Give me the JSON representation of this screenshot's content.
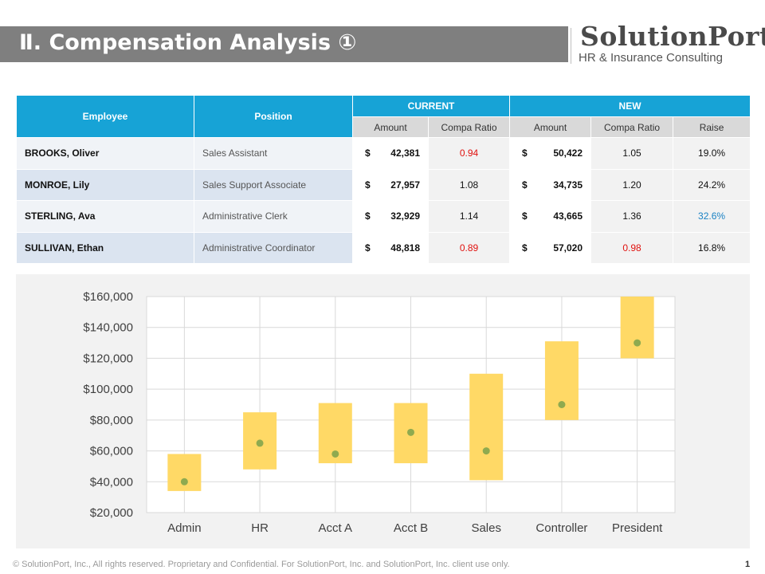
{
  "header": {
    "title": "Ⅱ. Compensation Analysis ①",
    "logo_name": "SolutionPort",
    "logo_sub": "HR & Insurance Consulting"
  },
  "table": {
    "headers": {
      "employee": "Employee",
      "position": "Position",
      "current": "CURRENT",
      "new": "NEW",
      "amount": "Amount",
      "compa_ratio": "Compa Ratio",
      "new_amount": "Amount",
      "new_compa_ratio": "Compa Ratio",
      "raise": "Raise"
    },
    "rows": [
      {
        "employee": "BROOKS, Oliver",
        "position": "Sales Assistant",
        "cur_sign": "$",
        "cur_amount": "42,381",
        "cur_ratio": "0.94",
        "new_sign": "$",
        "new_amount": "50,422",
        "new_ratio": "1.05",
        "raise": "19.0%"
      },
      {
        "employee": "MONROE, Lily",
        "position": "Sales Support Associate",
        "cur_sign": "$",
        "cur_amount": "27,957",
        "cur_ratio": "1.08",
        "new_sign": "$",
        "new_amount": "34,735",
        "new_ratio": "1.20",
        "raise": "24.2%"
      },
      {
        "employee": "STERLING, Ava",
        "position": "Administrative Clerk",
        "cur_sign": "$",
        "cur_amount": "32,929",
        "cur_ratio": "1.14",
        "new_sign": "$",
        "new_amount": "43,665",
        "new_ratio": "1.36",
        "raise": "32.6%"
      },
      {
        "employee": "SULLIVAN, Ethan",
        "position": "Administrative Coordinator",
        "cur_sign": "$",
        "cur_amount": "48,818",
        "cur_ratio": "0.89",
        "new_sign": "$",
        "new_amount": "57,020",
        "new_ratio": "0.98",
        "raise": "16.8%"
      }
    ]
  },
  "colors": {
    "header_blue": "#17a3d6",
    "ratio_low_red": "#e0120f",
    "raise_high_blue": "#1a82c4",
    "range_bar": "#ffd966",
    "midpoint": "#8faa4f"
  },
  "chart_data": {
    "type": "range-bar",
    "title": "",
    "xlabel": "",
    "ylabel": "",
    "categories": [
      "Admin",
      "HR",
      "Acct A",
      "Acct B",
      "Sales",
      "Controller",
      "President"
    ],
    "series": [
      {
        "name": "min",
        "values": [
          34000,
          48000,
          52000,
          52000,
          41000,
          80000,
          120000
        ]
      },
      {
        "name": "max",
        "values": [
          58000,
          85000,
          91000,
          91000,
          110000,
          131000,
          160000
        ]
      },
      {
        "name": "midpoint",
        "values": [
          40000,
          65000,
          58000,
          72000,
          60000,
          90000,
          130000
        ]
      }
    ],
    "ylim": [
      20000,
      160000
    ],
    "yticks": [
      20000,
      40000,
      60000,
      80000,
      100000,
      120000,
      140000,
      160000
    ],
    "ytick_labels": [
      "$20,000",
      "$40,000",
      "$60,000",
      "$80,000",
      "$100,000",
      "$120,000",
      "$140,000",
      "$160,000"
    ],
    "grid": true
  },
  "footer": {
    "text": "© SolutionPort, Inc., All rights reserved. Proprietary and Confidential. For SolutionPort, Inc. and SolutionPort, Inc. client use only.",
    "page": "1"
  }
}
